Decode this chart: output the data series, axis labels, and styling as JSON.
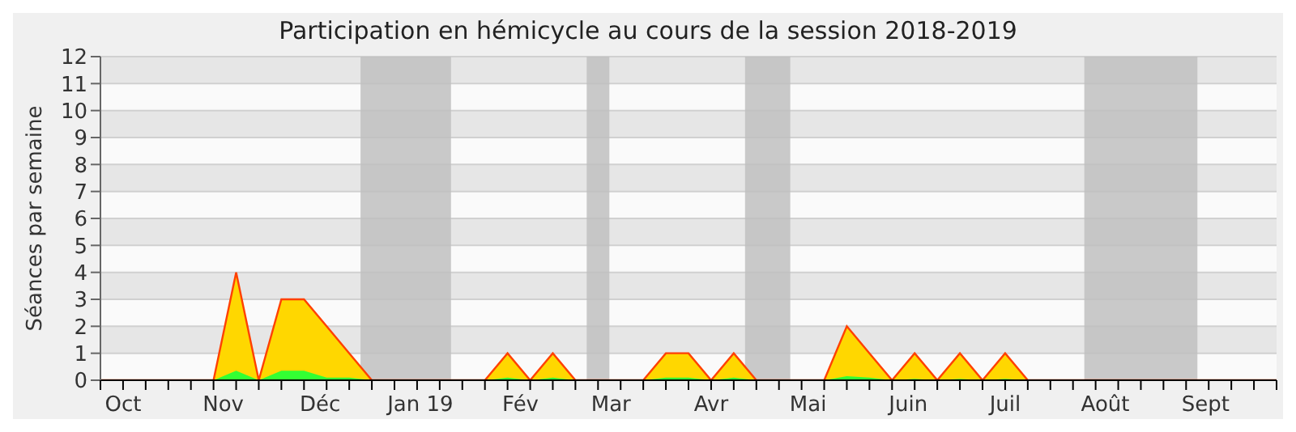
{
  "chart_data": {
    "type": "area",
    "title": "Participation en hémicycle au cours de la session 2018-2019",
    "ylabel": "Séances par semaine",
    "x": [
      "2018-09-24",
      "2018-10-01",
      "2018-10-08",
      "2018-10-15",
      "2018-10-22",
      "2018-10-29",
      "2018-11-05",
      "2018-11-12",
      "2018-11-19",
      "2018-11-26",
      "2018-12-03",
      "2018-12-10",
      "2018-12-17",
      "2018-12-24",
      "2018-12-31",
      "2019-01-07",
      "2019-01-14",
      "2019-01-21",
      "2019-01-28",
      "2019-02-04",
      "2019-02-11",
      "2019-02-18",
      "2019-02-25",
      "2019-03-04",
      "2019-03-11",
      "2019-03-18",
      "2019-03-25",
      "2019-04-01",
      "2019-04-08",
      "2019-04-15",
      "2019-04-22",
      "2019-04-29",
      "2019-05-06",
      "2019-05-13",
      "2019-05-20",
      "2019-05-27",
      "2019-06-03",
      "2019-06-10",
      "2019-06-17",
      "2019-06-24",
      "2019-07-01",
      "2019-07-08",
      "2019-07-15",
      "2019-07-22",
      "2019-07-29",
      "2019-08-05",
      "2019-08-12",
      "2019-08-19",
      "2019-08-26",
      "2019-09-02",
      "2019-09-09",
      "2019-09-16",
      "2019-09-23"
    ],
    "series": [
      {
        "color": "#ffd700",
        "values": [
          0,
          0,
          0,
          0,
          0,
          0,
          4,
          0,
          3,
          3,
          2,
          1,
          0,
          0,
          0,
          0,
          0,
          0,
          1,
          0,
          1,
          0,
          0,
          0,
          0,
          1,
          1,
          0,
          1,
          0,
          0,
          0,
          0,
          2,
          1,
          0,
          1,
          0,
          1,
          0,
          1,
          0,
          0,
          0,
          0,
          0,
          0,
          0,
          0,
          0,
          0,
          0,
          0
        ]
      },
      {
        "color": "#33ff33",
        "values": [
          0,
          0,
          0,
          0,
          0,
          0,
          0.35,
          0,
          0.35,
          0.35,
          0.1,
          0.1,
          0,
          0,
          0,
          0,
          0,
          0,
          0.1,
          0,
          0.1,
          0,
          0,
          0,
          0,
          0.1,
          0.1,
          0,
          0.1,
          0,
          0,
          0,
          0,
          0.15,
          0.1,
          0,
          0.05,
          0,
          0.05,
          0,
          0.05,
          0,
          0,
          0,
          0,
          0,
          0,
          0,
          0,
          0,
          0,
          0,
          0
        ]
      }
    ],
    "xlim": [
      "2018-09-24",
      "2019-09-23"
    ],
    "xticks": [
      {
        "value": "2018-10-01",
        "label": "Oct"
      },
      {
        "value": "2018-11-01",
        "label": "Nov"
      },
      {
        "value": "2018-12-01",
        "label": "Déc"
      },
      {
        "value": "2019-01-01",
        "label": "Jan 19"
      },
      {
        "value": "2019-02-01",
        "label": "Fév"
      },
      {
        "value": "2019-03-01",
        "label": "Mar"
      },
      {
        "value": "2019-04-01",
        "label": "Avr"
      },
      {
        "value": "2019-05-01",
        "label": "Mai"
      },
      {
        "value": "2019-06-01",
        "label": "Juin"
      },
      {
        "value": "2019-07-01",
        "label": "Juil"
      },
      {
        "value": "2019-08-01",
        "label": "Août"
      },
      {
        "value": "2019-09-01",
        "label": "Sept"
      }
    ],
    "ylim": [
      0,
      12
    ],
    "yticks": [
      0,
      1,
      2,
      3,
      4,
      5,
      6,
      7,
      8,
      9,
      10,
      11,
      12
    ],
    "grid": "y",
    "bands": [
      {
        "axis": "x",
        "from": "2018-12-13T12:00",
        "to": "2019-01-10T12:00",
        "color": "#c0c0c0"
      },
      {
        "axis": "x",
        "from": "2019-02-21T12:00",
        "to": "2019-02-28T12:00",
        "color": "#c0c0c0"
      },
      {
        "axis": "x",
        "from": "2019-04-11T12:00",
        "to": "2019-04-25T12:00",
        "color": "#c0c0c0"
      },
      {
        "axis": "x",
        "from": "2019-07-25T12:00",
        "to": "2019-08-29T12:00",
        "color": "#c0c0c0"
      }
    ]
  }
}
